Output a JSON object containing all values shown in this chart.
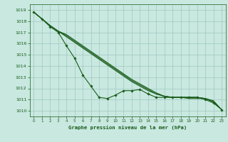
{
  "xlabel": "Graphe pression niveau de la mer (hPa)",
  "xlim": [
    -0.5,
    23.5
  ],
  "ylim": [
    1009.5,
    1019.5
  ],
  "yticks": [
    1010,
    1011,
    1012,
    1013,
    1014,
    1015,
    1016,
    1017,
    1018,
    1019
  ],
  "xticks": [
    0,
    1,
    2,
    3,
    4,
    5,
    6,
    7,
    8,
    9,
    10,
    11,
    12,
    13,
    14,
    15,
    16,
    17,
    18,
    19,
    20,
    21,
    22,
    23
  ],
  "background_color": "#c8e8e0",
  "grid_color": "#a0c8c0",
  "line_color": "#1a5c1a",
  "line1_x": [
    0,
    1,
    2,
    3,
    4,
    5,
    6,
    7,
    8,
    9,
    10,
    11,
    12,
    13,
    14,
    15,
    16,
    17,
    18,
    19,
    20,
    21,
    22,
    23
  ],
  "line1_y": [
    1018.8,
    1018.2,
    1017.5,
    1017.0,
    1015.8,
    1014.7,
    1013.2,
    1012.2,
    1011.2,
    1011.1,
    1011.4,
    1011.8,
    1011.8,
    1011.9,
    1011.5,
    1011.2,
    1011.2,
    1011.2,
    1011.2,
    1011.2,
    1011.2,
    1011.0,
    1010.7,
    1010.1
  ],
  "line2_x": [
    0,
    1,
    2,
    3,
    4,
    5,
    6,
    7,
    8,
    9,
    10,
    11,
    12,
    13,
    14,
    15,
    16,
    17,
    18,
    19,
    20,
    21,
    22,
    23
  ],
  "line2_y": [
    1018.8,
    1018.2,
    1017.6,
    1017.1,
    1016.8,
    1016.3,
    1015.8,
    1015.3,
    1014.8,
    1014.3,
    1013.8,
    1013.3,
    1012.8,
    1012.4,
    1012.0,
    1011.6,
    1011.3,
    1011.2,
    1011.2,
    1011.1,
    1011.1,
    1011.1,
    1010.9,
    1010.1
  ],
  "line3_x": [
    0,
    1,
    2,
    3,
    4,
    5,
    6,
    7,
    8,
    9,
    10,
    11,
    12,
    13,
    14,
    15,
    16,
    17,
    18,
    19,
    20,
    21,
    22,
    23
  ],
  "line3_y": [
    1018.8,
    1018.2,
    1017.6,
    1017.1,
    1016.6,
    1016.1,
    1015.6,
    1015.1,
    1014.6,
    1014.1,
    1013.6,
    1013.1,
    1012.6,
    1012.2,
    1011.8,
    1011.5,
    1011.3,
    1011.2,
    1011.2,
    1011.2,
    1011.2,
    1011.1,
    1010.8,
    1010.1
  ],
  "line4_x": [
    0,
    1,
    2,
    3,
    4,
    5,
    6,
    7,
    8,
    9,
    10,
    11,
    12,
    13,
    14,
    15,
    16,
    17,
    18,
    19,
    20,
    21,
    22,
    23
  ],
  "line4_y": [
    1018.8,
    1018.2,
    1017.6,
    1017.1,
    1016.7,
    1016.2,
    1015.7,
    1015.2,
    1014.7,
    1014.2,
    1013.7,
    1013.2,
    1012.7,
    1012.3,
    1011.9,
    1011.5,
    1011.3,
    1011.2,
    1011.2,
    1011.2,
    1011.2,
    1011.1,
    1010.8,
    1010.1
  ]
}
